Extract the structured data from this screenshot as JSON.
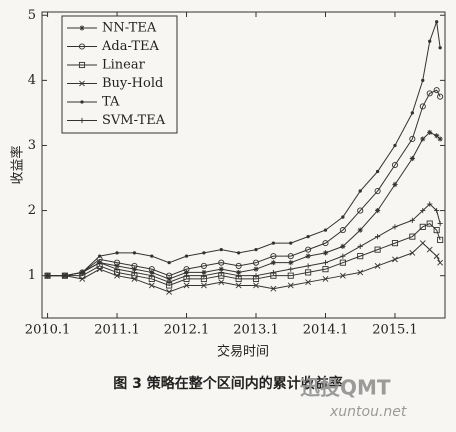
{
  "chart_data": {
    "type": "line",
    "caption": "图 3  策略在整个区间内的累计收益率",
    "xlabel": "交易时间",
    "ylabel": "收益率",
    "watermark": [
      "迅投QMT",
      "xuntou.net"
    ],
    "x": [
      2010.0,
      2010.25,
      2010.5,
      2010.75,
      2011.0,
      2011.25,
      2011.5,
      2011.75,
      2012.0,
      2012.25,
      2012.5,
      2012.75,
      2013.0,
      2013.25,
      2013.5,
      2013.75,
      2014.0,
      2014.25,
      2014.5,
      2014.75,
      2015.0,
      2015.25,
      2015.4,
      2015.5,
      2015.6,
      2015.65
    ],
    "series": [
      {
        "name": "NN-TEA",
        "color": "#333333",
        "marker": "star",
        "values": [
          1,
          1,
          1.05,
          1.2,
          1.15,
          1.1,
          1.05,
          0.95,
          1.05,
          1.05,
          1.1,
          1.05,
          1.1,
          1.2,
          1.2,
          1.3,
          1.35,
          1.45,
          1.7,
          2.0,
          2.4,
          2.8,
          3.1,
          3.2,
          3.15,
          3.1
        ]
      },
      {
        "name": "Ada-TEA",
        "color": "#333333",
        "marker": "circle",
        "values": [
          1,
          1,
          1.05,
          1.25,
          1.2,
          1.15,
          1.1,
          1.0,
          1.1,
          1.15,
          1.2,
          1.15,
          1.2,
          1.3,
          1.3,
          1.4,
          1.5,
          1.7,
          2.0,
          2.3,
          2.7,
          3.1,
          3.6,
          3.8,
          3.85,
          3.75
        ]
      },
      {
        "name": "Linear",
        "color": "#333333",
        "marker": "square",
        "values": [
          1,
          1,
          1.0,
          1.15,
          1.05,
          1.0,
          0.95,
          0.85,
          0.95,
          0.95,
          1.0,
          0.95,
          0.95,
          1.0,
          1.0,
          1.05,
          1.1,
          1.2,
          1.3,
          1.4,
          1.5,
          1.6,
          1.75,
          1.8,
          1.7,
          1.55
        ]
      },
      {
        "name": "Buy-Hold",
        "color": "#333333",
        "marker": "x",
        "values": [
          1,
          1,
          0.95,
          1.1,
          1.0,
          0.95,
          0.85,
          0.75,
          0.85,
          0.85,
          0.9,
          0.85,
          0.85,
          0.8,
          0.85,
          0.9,
          0.95,
          1.0,
          1.05,
          1.15,
          1.25,
          1.35,
          1.5,
          1.4,
          1.3,
          1.2
        ]
      },
      {
        "name": "TA",
        "color": "#333333",
        "marker": "dot",
        "values": [
          1,
          1,
          1.05,
          1.3,
          1.35,
          1.35,
          1.3,
          1.2,
          1.3,
          1.35,
          1.4,
          1.35,
          1.4,
          1.5,
          1.5,
          1.6,
          1.7,
          1.9,
          2.3,
          2.6,
          3.0,
          3.5,
          4.0,
          4.6,
          4.9,
          4.5
        ]
      },
      {
        "name": "SVM-TEA",
        "color": "#333333",
        "marker": "plus",
        "values": [
          1,
          1,
          1.05,
          1.2,
          1.1,
          1.05,
          1.0,
          0.9,
          1.0,
          1.0,
          1.05,
          1.0,
          1.0,
          1.05,
          1.1,
          1.15,
          1.2,
          1.3,
          1.45,
          1.6,
          1.75,
          1.85,
          2.0,
          2.1,
          2.0,
          1.8
        ]
      }
    ],
    "xlim": [
      2009.92,
      2015.72
    ],
    "xticks": [
      {
        "value": 2010.0,
        "label": "2010.1"
      },
      {
        "value": 2011.0,
        "label": "2011.1"
      },
      {
        "value": 2012.0,
        "label": "2012.1"
      },
      {
        "value": 2013.0,
        "label": "2013.1"
      },
      {
        "value": 2014.0,
        "label": "2014.1"
      },
      {
        "value": 2015.0,
        "label": "2015.1"
      }
    ],
    "ylim": [
      0.35,
      5.05
    ],
    "yticks": [
      1,
      2,
      3,
      4,
      5
    ],
    "legend": "upper-left"
  }
}
